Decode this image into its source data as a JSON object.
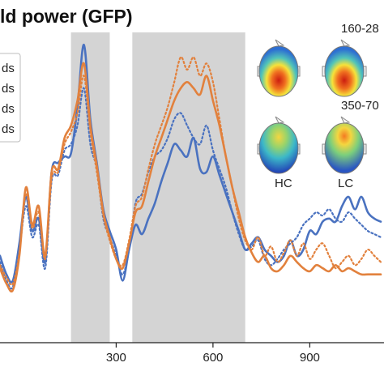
{
  "chart_data": {
    "type": "line",
    "title": "ld power (GFP)",
    "xlabel": "",
    "ylabel": "",
    "xlim": [
      -60,
      1130
    ],
    "ylim": [
      0,
      1
    ],
    "x_ticks": [
      {
        "value": 300,
        "label": "300"
      },
      {
        "value": 600,
        "label": "600"
      },
      {
        "value": 900,
        "label": "900"
      }
    ],
    "shaded_windows": [
      [
        160,
        280
      ],
      [
        350,
        700
      ]
    ],
    "colors": {
      "blue": "#4a72c0",
      "orange": "#e2813d",
      "shade": "#d4d4d4"
    },
    "legend_entries": [
      "ds",
      "ds",
      "ds",
      "ds"
    ],
    "topography": {
      "window_labels": [
        "160-28",
        "350-70"
      ],
      "group_labels": [
        "HC",
        "LC"
      ]
    },
    "series": [
      {
        "color": "#4a72c0",
        "style": "solid",
        "x": [
          -60,
          -40,
          -20,
          0,
          20,
          40,
          60,
          80,
          100,
          120,
          140,
          160,
          180,
          200,
          220,
          240,
          260,
          280,
          300,
          320,
          340,
          360,
          380,
          400,
          420,
          440,
          460,
          480,
          500,
          520,
          540,
          560,
          580,
          600,
          620,
          640,
          660,
          680,
          700,
          720,
          740,
          760,
          780,
          800,
          820,
          840,
          860,
          880,
          900,
          920,
          940,
          960,
          980,
          1000,
          1020,
          1040,
          1060,
          1080,
          1100,
          1120
        ],
        "y": [
          0.28,
          0.22,
          0.2,
          0.32,
          0.47,
          0.36,
          0.4,
          0.26,
          0.55,
          0.58,
          0.6,
          0.61,
          0.76,
          0.96,
          0.72,
          0.58,
          0.43,
          0.36,
          0.3,
          0.2,
          0.3,
          0.38,
          0.35,
          0.4,
          0.45,
          0.52,
          0.58,
          0.64,
          0.62,
          0.6,
          0.66,
          0.56,
          0.55,
          0.6,
          0.54,
          0.48,
          0.42,
          0.36,
          0.3,
          0.32,
          0.34,
          0.3,
          0.28,
          0.26,
          0.28,
          0.33,
          0.28,
          0.3,
          0.36,
          0.35,
          0.39,
          0.4,
          0.39,
          0.44,
          0.47,
          0.43,
          0.47,
          0.42,
          0.4,
          0.39
        ]
      },
      {
        "color": "#4a72c0",
        "style": "dotted",
        "x": [
          -60,
          -40,
          -20,
          0,
          20,
          40,
          60,
          80,
          100,
          120,
          140,
          160,
          180,
          200,
          220,
          240,
          260,
          280,
          300,
          320,
          340,
          360,
          380,
          400,
          420,
          440,
          460,
          480,
          500,
          520,
          540,
          560,
          580,
          600,
          620,
          640,
          660,
          680,
          700,
          720,
          740,
          760,
          780,
          800,
          820,
          840,
          860,
          880,
          900,
          920,
          940,
          960,
          980,
          1000,
          1020,
          1040,
          1060,
          1080,
          1100,
          1120
        ],
        "y": [
          0.26,
          0.2,
          0.18,
          0.3,
          0.44,
          0.34,
          0.38,
          0.24,
          0.52,
          0.54,
          0.62,
          0.64,
          0.7,
          0.82,
          0.64,
          0.56,
          0.4,
          0.34,
          0.28,
          0.22,
          0.3,
          0.45,
          0.48,
          0.55,
          0.6,
          0.62,
          0.66,
          0.72,
          0.74,
          0.7,
          0.66,
          0.64,
          0.7,
          0.62,
          0.56,
          0.5,
          0.42,
          0.35,
          0.3,
          0.31,
          0.33,
          0.27,
          0.25,
          0.27,
          0.3,
          0.32,
          0.34,
          0.38,
          0.4,
          0.42,
          0.41,
          0.43,
          0.4,
          0.39,
          0.42,
          0.4,
          0.38,
          0.36,
          0.35,
          0.34
        ]
      },
      {
        "color": "#e2813d",
        "style": "solid",
        "x": [
          -60,
          -40,
          -20,
          0,
          20,
          40,
          60,
          80,
          100,
          120,
          140,
          160,
          180,
          200,
          220,
          240,
          260,
          280,
          300,
          320,
          340,
          360,
          380,
          400,
          420,
          440,
          460,
          480,
          500,
          520,
          540,
          560,
          580,
          600,
          620,
          640,
          660,
          680,
          700,
          720,
          740,
          760,
          780,
          800,
          820,
          840,
          860,
          880,
          900,
          920,
          940,
          960,
          980,
          1000,
          1020,
          1040,
          1060,
          1080,
          1100,
          1120
        ],
        "y": [
          0.24,
          0.19,
          0.17,
          0.28,
          0.5,
          0.38,
          0.44,
          0.28,
          0.55,
          0.56,
          0.66,
          0.7,
          0.78,
          0.9,
          0.7,
          0.57,
          0.42,
          0.34,
          0.27,
          0.24,
          0.32,
          0.42,
          0.44,
          0.52,
          0.6,
          0.66,
          0.72,
          0.78,
          0.82,
          0.84,
          0.82,
          0.8,
          0.86,
          0.78,
          0.7,
          0.6,
          0.5,
          0.42,
          0.34,
          0.29,
          0.26,
          0.28,
          0.24,
          0.23,
          0.25,
          0.28,
          0.26,
          0.24,
          0.23,
          0.25,
          0.24,
          0.23,
          0.25,
          0.23,
          0.24,
          0.23,
          0.22,
          0.22,
          0.22,
          0.22
        ]
      },
      {
        "color": "#e2813d",
        "style": "dotted",
        "x": [
          -60,
          -40,
          -20,
          0,
          20,
          40,
          60,
          80,
          100,
          120,
          140,
          160,
          180,
          200,
          220,
          240,
          260,
          280,
          300,
          320,
          340,
          360,
          380,
          400,
          420,
          440,
          460,
          480,
          500,
          520,
          540,
          560,
          580,
          600,
          620,
          640,
          660,
          680,
          700,
          720,
          740,
          760,
          780,
          800,
          820,
          840,
          860,
          880,
          900,
          920,
          940,
          960,
          980,
          1000,
          1020,
          1040,
          1060,
          1080,
          1100,
          1120
        ],
        "y": [
          0.25,
          0.21,
          0.19,
          0.29,
          0.48,
          0.37,
          0.42,
          0.27,
          0.53,
          0.55,
          0.64,
          0.68,
          0.74,
          0.86,
          0.68,
          0.55,
          0.41,
          0.33,
          0.27,
          0.25,
          0.33,
          0.44,
          0.47,
          0.56,
          0.64,
          0.7,
          0.76,
          0.84,
          0.92,
          0.88,
          0.92,
          0.86,
          0.9,
          0.84,
          0.72,
          0.6,
          0.5,
          0.4,
          0.33,
          0.3,
          0.34,
          0.28,
          0.31,
          0.26,
          0.29,
          0.33,
          0.28,
          0.32,
          0.27,
          0.3,
          0.32,
          0.28,
          0.24,
          0.26,
          0.28,
          0.25,
          0.27,
          0.3,
          0.28,
          0.26
        ]
      }
    ]
  }
}
